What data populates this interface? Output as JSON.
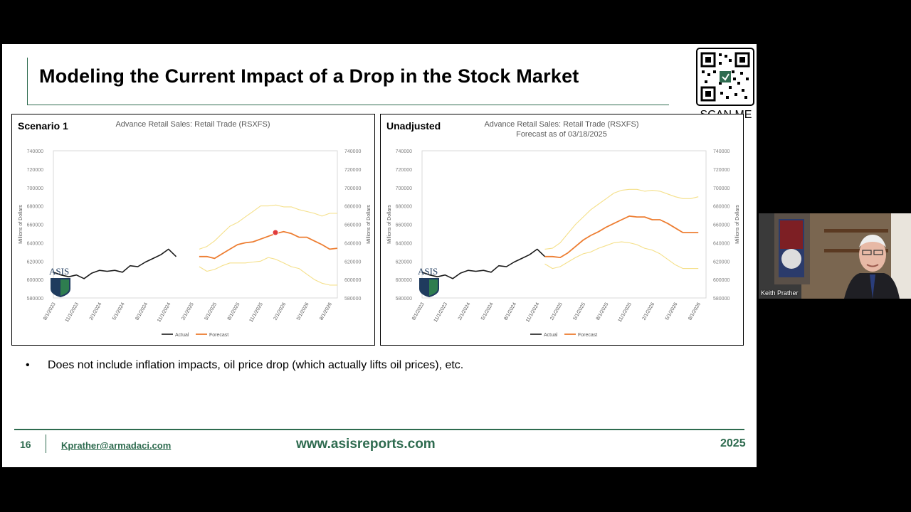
{
  "slide": {
    "title": "Modeling the Current Impact of a Drop in the Stock Market",
    "scan_me": "SCAN ME",
    "bullet_marker": "•",
    "bullet_text": "Does not include inflation impacts, oil price drop (which actually lifts oil prices), etc.",
    "footer": {
      "page_number": "16",
      "email": "Kprather@armadaci.com",
      "website": "www.asisreports.com",
      "year": "2025"
    }
  },
  "panels": [
    {
      "label": "Scenario 1",
      "logo_text": "ASIS"
    },
    {
      "label": "Unadjusted",
      "logo_text": "ASIS"
    }
  ],
  "webcam": {
    "participant_name": "Keith Prather"
  },
  "colors": {
    "accent_green": "#2e6b4f",
    "actual": "#1a1a1a",
    "forecast": "#ed7d31",
    "bounds": "#f5e08a"
  },
  "chart_data": [
    {
      "type": "line",
      "title": "Advance Retail Sales: Retail Trade (RSXFS)",
      "subtitle": "",
      "ylabel": "Millions of Dollars",
      "ylim": [
        580000,
        740000
      ],
      "yticks": [
        "740000",
        "720000",
        "700000",
        "680000",
        "660000",
        "640000",
        "620000",
        "600000",
        "580000"
      ],
      "xticks": [
        "8/1/2023",
        "11/1/2023",
        "2/1/2024",
        "5/1/2024",
        "8/1/2024",
        "11/1/2024",
        "2/1/2025",
        "5/1/2025",
        "8/1/2025",
        "11/1/2025",
        "2/1/2026",
        "5/1/2026",
        "8/1/2026"
      ],
      "legend": [
        "Actual",
        "Forecast"
      ],
      "series": [
        {
          "name": "Actual",
          "x": [
            0,
            1,
            2,
            3,
            4,
            5,
            6,
            7,
            8,
            9,
            10,
            11,
            12,
            13,
            14,
            15,
            16,
            17,
            18
          ],
          "values": [
            608000,
            605000,
            603000,
            605000,
            601000,
            607000,
            610000,
            609000,
            610000,
            608000,
            615000,
            614000,
            619000,
            623000,
            627000,
            633000,
            625000,
            null,
            null
          ]
        },
        {
          "name": "Forecast",
          "x": [
            19,
            20,
            21,
            22,
            23,
            24,
            25,
            26,
            27,
            28,
            29,
            30,
            31,
            32,
            33,
            34,
            35,
            36,
            37
          ],
          "values": [
            625000,
            625000,
            623000,
            628000,
            633000,
            638000,
            640000,
            641000,
            644000,
            647000,
            650000,
            652000,
            650000,
            646000,
            646000,
            642000,
            638000,
            633000,
            634000
          ]
        },
        {
          "name": "Upper bound",
          "x": [
            19,
            20,
            21,
            22,
            23,
            24,
            25,
            26,
            27,
            28,
            29,
            30,
            31,
            32,
            33,
            34,
            35,
            36,
            37
          ],
          "values": [
            633000,
            636000,
            642000,
            650000,
            658000,
            662000,
            668000,
            674000,
            680000,
            680000,
            681000,
            679000,
            679000,
            676000,
            674000,
            672000,
            669000,
            672000,
            672000
          ]
        },
        {
          "name": "Lower bound",
          "x": [
            19,
            20,
            21,
            22,
            23,
            24,
            25,
            26,
            27,
            28,
            29,
            30,
            31,
            32,
            33,
            34,
            35,
            36,
            37
          ],
          "values": [
            614000,
            609000,
            611000,
            615000,
            618000,
            618000,
            618000,
            619000,
            620000,
            624000,
            622000,
            618000,
            614000,
            612000,
            606000,
            600000,
            596000,
            594000,
            594000
          ]
        }
      ]
    },
    {
      "type": "line",
      "title": "Advance Retail Sales: Retail Trade (RSXFS)",
      "subtitle": "Forecast as of 03/18/2025",
      "ylabel": "Millions of Dollars",
      "ylim": [
        580000,
        740000
      ],
      "yticks": [
        "740000",
        "720000",
        "700000",
        "680000",
        "660000",
        "640000",
        "620000",
        "600000",
        "580000"
      ],
      "xticks": [
        "8/1/2023",
        "11/1/2023",
        "2/1/2024",
        "5/1/2024",
        "8/1/2024",
        "11/1/2024",
        "2/1/2025",
        "5/1/2025",
        "8/1/2025",
        "11/1/2025",
        "2/1/2026",
        "5/1/2026",
        "8/1/2026"
      ],
      "legend": [
        "Actual",
        "Forecast"
      ],
      "series": [
        {
          "name": "Actual",
          "x": [
            0,
            1,
            2,
            3,
            4,
            5,
            6,
            7,
            8,
            9,
            10,
            11,
            12,
            13,
            14,
            15,
            16
          ],
          "values": [
            608000,
            605000,
            603000,
            605000,
            601000,
            607000,
            610000,
            609000,
            610000,
            608000,
            615000,
            614000,
            619000,
            623000,
            627000,
            633000,
            625000
          ]
        },
        {
          "name": "Forecast",
          "x": [
            16,
            17,
            18,
            19,
            20,
            21,
            22,
            23,
            24,
            25,
            26,
            27,
            28,
            29,
            30,
            31,
            32,
            33,
            34,
            35,
            36
          ],
          "values": [
            625000,
            625000,
            624000,
            629000,
            636000,
            643000,
            648000,
            652000,
            657000,
            661000,
            665000,
            669000,
            668000,
            668000,
            665000,
            665000,
            661000,
            656000,
            651000,
            651000,
            651000
          ]
        },
        {
          "name": "Upper bound",
          "x": [
            16,
            17,
            18,
            19,
            20,
            21,
            22,
            23,
            24,
            25,
            26,
            27,
            28,
            29,
            30,
            31,
            32,
            33,
            34,
            35,
            36
          ],
          "values": [
            633000,
            634000,
            640000,
            650000,
            660000,
            668000,
            676000,
            682000,
            688000,
            694000,
            697000,
            698000,
            698000,
            696000,
            697000,
            696000,
            693000,
            690000,
            688000,
            688000,
            690000
          ]
        },
        {
          "name": "Lower bound",
          "x": [
            16,
            17,
            18,
            19,
            20,
            21,
            22,
            23,
            24,
            25,
            26,
            27,
            28,
            29,
            30,
            31,
            32,
            33,
            34,
            35,
            36
          ],
          "values": [
            617000,
            612000,
            614000,
            619000,
            624000,
            628000,
            630000,
            634000,
            637000,
            640000,
            641000,
            640000,
            638000,
            634000,
            632000,
            628000,
            622000,
            616000,
            612000,
            612000,
            612000
          ]
        }
      ]
    }
  ]
}
